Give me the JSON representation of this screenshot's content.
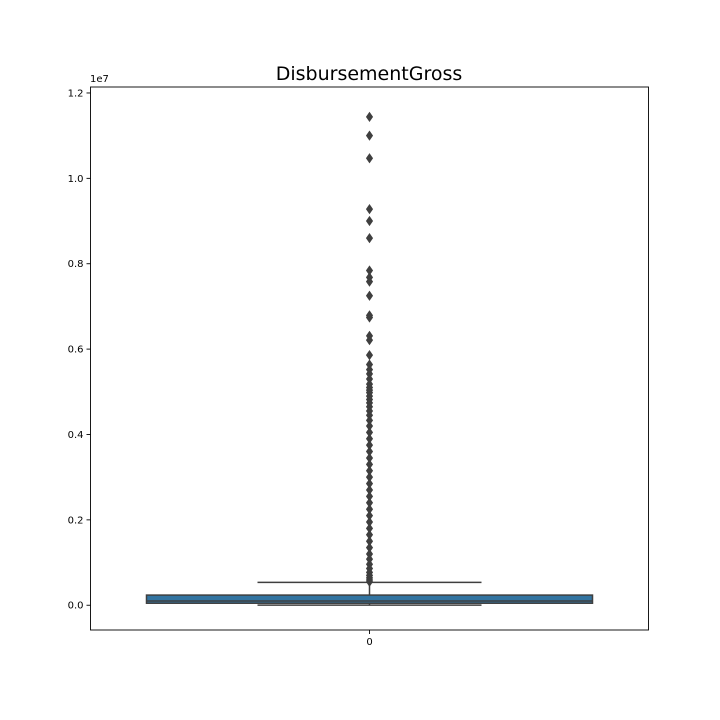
{
  "chart_data": {
    "type": "box",
    "title": "DisbursementGross",
    "xlabel": "",
    "ylabel": "",
    "categories": [
      "0"
    ],
    "y_tick_labels": [
      "0.0",
      "0.2",
      "0.4",
      "0.6",
      "0.8",
      "1.0",
      "1.2"
    ],
    "y_tick_values": [
      0,
      2000000,
      4000000,
      6000000,
      8000000,
      10000000,
      12000000
    ],
    "y_offset_label": "1e7",
    "ylim": [
      -580000,
      12140000
    ],
    "grid": false,
    "legend": "none",
    "box": {
      "category": "0",
      "whisker_low": 4000,
      "q1": 47000,
      "median": 100000,
      "q3": 238000,
      "whisker_high": 537000,
      "box_color": "#3274a1",
      "line_color": "#3f3f3f"
    },
    "outliers": [
      11440000,
      11000000,
      10470000,
      9280000,
      9000000,
      8600000,
      7840000,
      7680000,
      7580000,
      7250000,
      6790000,
      6740000,
      6310000,
      6210000,
      5860000,
      5640000,
      5520000,
      5420000,
      5300000,
      5180000,
      5100000,
      5040000,
      4980000,
      4900000,
      4820000,
      4740000,
      4650000,
      4550000,
      4450000,
      4330000,
      4200000,
      4050000,
      3900000,
      3750000,
      3600000,
      3450000,
      3300000,
      3150000,
      3000000,
      2850000,
      2700000,
      2550000,
      2400000,
      2250000,
      2100000,
      1950000,
      1800000,
      1650000,
      1500000,
      1350000,
      1200000,
      1080000,
      960000,
      860000,
      770000,
      700000,
      640000,
      590000,
      550000
    ]
  }
}
